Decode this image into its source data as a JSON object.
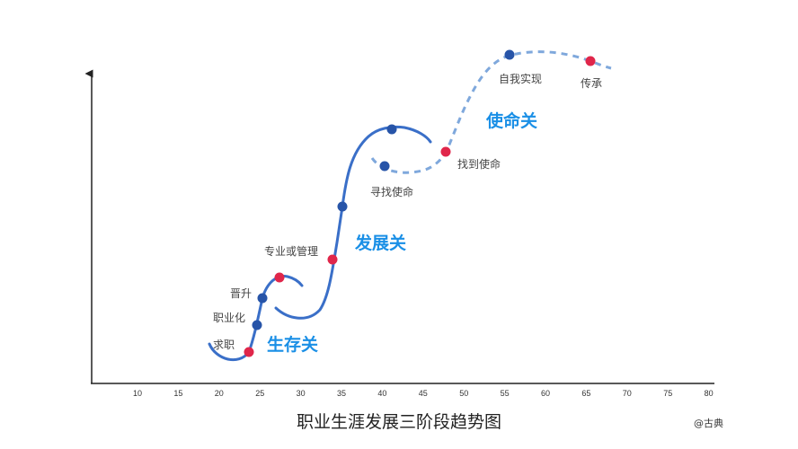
{
  "title": "职业生涯发展三阶段趋势图",
  "credit": "@古典",
  "x_ticks": [
    "10",
    "15",
    "20",
    "25",
    "30",
    "35",
    "40",
    "45",
    "50",
    "55",
    "60",
    "65",
    "70",
    "75",
    "80"
  ],
  "stages": [
    "生存关",
    "发展关",
    "使命关"
  ],
  "milestones": [
    "求职",
    "职业化",
    "晋升",
    "专业或管理",
    "寻找使命",
    "找到使命",
    "自我实现",
    "传承"
  ],
  "colors": {
    "curve": "#3a6fc8",
    "dashed": "#7fa8dc",
    "dot_blue": "#2754a8",
    "dot_red": "#e0264a",
    "stage_text": "#1a8fe6"
  }
}
